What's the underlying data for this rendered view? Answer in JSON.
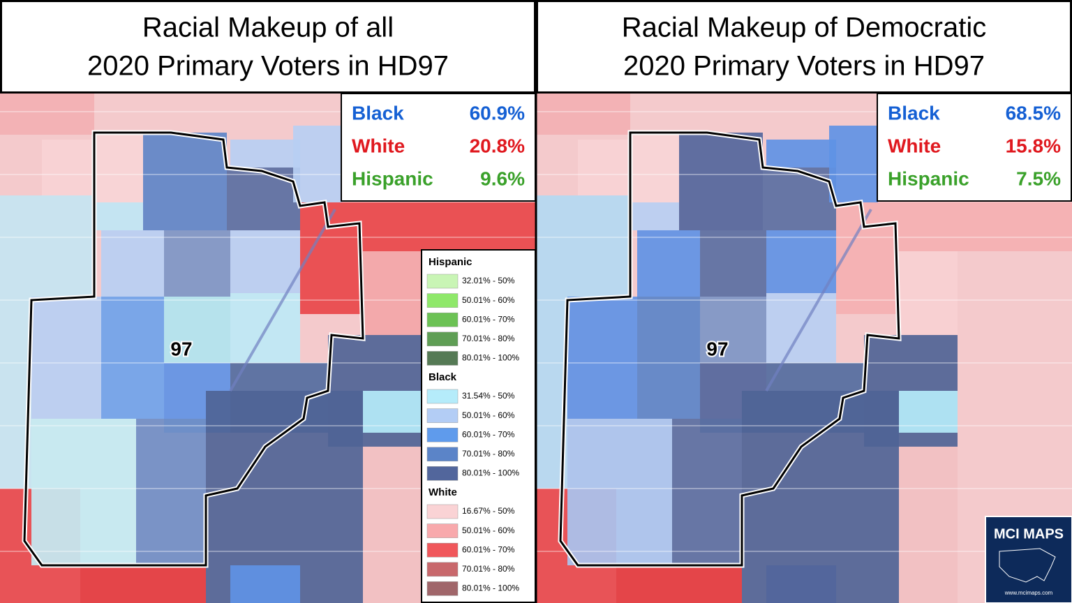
{
  "panels": [
    {
      "title_lines": [
        "Racial Makeup of all",
        "2020 Primary Voters in HD97"
      ],
      "stats": [
        {
          "label": "Black",
          "value": "60.9%",
          "color": "#1560d4"
        },
        {
          "label": "White",
          "value": "20.8%",
          "color": "#e0191f"
        },
        {
          "label": "Hispanic",
          "value": "9.6%",
          "color": "#3aa12a"
        }
      ],
      "district_label": "97"
    },
    {
      "title_lines": [
        "Racial Makeup of Democratic",
        "2020 Primary Voters in HD97"
      ],
      "stats": [
        {
          "label": "Black",
          "value": "68.5%",
          "color": "#1560d4"
        },
        {
          "label": "White",
          "value": "15.8%",
          "color": "#e0191f"
        },
        {
          "label": "Hispanic",
          "value": "7.5%",
          "color": "#3aa12a"
        }
      ],
      "district_label": "97"
    }
  ],
  "legend": {
    "groups": [
      {
        "name": "Hispanic",
        "items": [
          {
            "range": "32.01% - 50%",
            "color": "#c9f5b5"
          },
          {
            "range": "50.01% - 60%",
            "color": "#8fe86a"
          },
          {
            "range": "60.01% - 70%",
            "color": "#6cc255"
          },
          {
            "range": "70.01% - 80%",
            "color": "#5f9e55"
          },
          {
            "range": "80.01% - 100%",
            "color": "#557a55"
          }
        ]
      },
      {
        "name": "Black",
        "items": [
          {
            "range": "31.54% - 50%",
            "color": "#b5ecfa"
          },
          {
            "range": "50.01% - 60%",
            "color": "#b3cdf5"
          },
          {
            "range": "60.01% - 70%",
            "color": "#5f9bec"
          },
          {
            "range": "70.01% - 80%",
            "color": "#5b84c8"
          },
          {
            "range": "80.01% - 100%",
            "color": "#52669c"
          }
        ]
      },
      {
        "name": "White",
        "items": [
          {
            "range": "16.67% - 50%",
            "color": "#fad3d5"
          },
          {
            "range": "50.01% - 60%",
            "color": "#f8a9ac"
          },
          {
            "range": "60.01% - 70%",
            "color": "#f0575b"
          },
          {
            "range": "70.01% - 80%",
            "color": "#c8686c"
          },
          {
            "range": "80.01% - 100%",
            "color": "#a0666a"
          }
        ]
      }
    ]
  },
  "logo": {
    "title": "MCI MAPS",
    "url": "www.mcimaps.com"
  }
}
